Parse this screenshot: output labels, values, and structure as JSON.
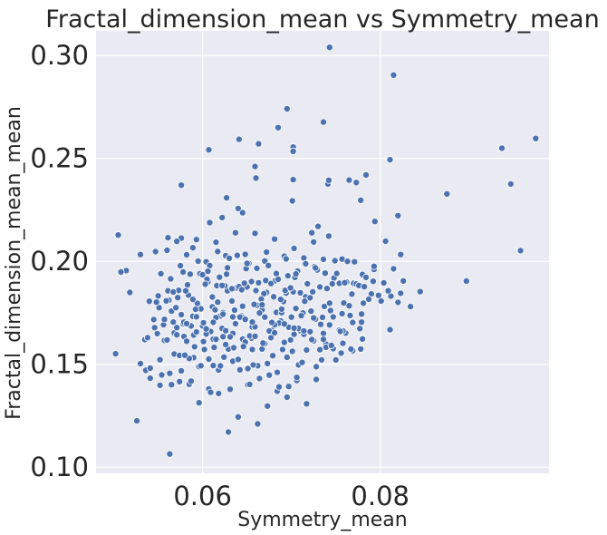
{
  "chart_data": {
    "type": "scatter",
    "title": "Fractal_dimension_mean vs Symmetry_mean",
    "xlabel": "Symmetry_mean",
    "ylabel": "Fractal_dimension_mean_mean",
    "xlim": [
      0.048,
      0.099
    ],
    "ylim": [
      0.097,
      0.312
    ],
    "xticks": [
      0.06,
      0.08
    ],
    "xtick_labels": [
      "0.06",
      "0.08"
    ],
    "yticks": [
      0.1,
      0.15,
      0.2,
      0.25,
      0.3
    ],
    "ytick_labels": [
      "0.10",
      "0.15",
      "0.20",
      "0.25",
      "0.30"
    ],
    "grid": true,
    "background": "#eaeaf2",
    "point_color": "#4c72b0",
    "x": [
      0.0743,
      0.0815,
      0.0695,
      0.0736,
      0.0702,
      0.0702,
      0.0685,
      0.0937,
      0.0975,
      0.0641,
      0.0607,
      0.0811,
      0.0663,
      0.0659,
      0.0741,
      0.0947,
      0.0958,
      0.0576,
      0.0702,
      0.0742,
      0.0765,
      0.0773,
      0.0778,
      0.0875,
      0.082,
      0.0806,
      0.0784,
      0.0794,
      0.0897,
      0.0823,
      0.0811,
      0.0761,
      0.0793,
      0.0757,
      0.078,
      0.0763,
      0.0779,
      0.0742,
      0.073,
      0.0723,
      0.0701,
      0.066,
      0.064,
      0.0645,
      0.0627,
      0.0622,
      0.0608,
      0.0576,
      0.0589,
      0.0561,
      0.0547,
      0.053,
      0.0514,
      0.0508,
      0.0505,
      0.0502,
      0.0518,
      0.0526,
      0.0536,
      0.0541,
      0.0552,
      0.0563,
      0.0574,
      0.0585,
      0.0596,
      0.0607,
      0.0618,
      0.0629,
      0.064,
      0.0651,
      0.0662,
      0.0673,
      0.0684,
      0.0695,
      0.0706,
      0.0717,
      0.0728,
      0.0739,
      0.0557,
      0.0568,
      0.0579,
      0.059,
      0.0601,
      0.0612,
      0.0623,
      0.0634,
      0.0645,
      0.0656,
      0.0667,
      0.0678,
      0.0545,
      0.0556,
      0.0567,
      0.0578,
      0.0589,
      0.06,
      0.0611,
      0.0622,
      0.0633,
      0.0644,
      0.0655,
      0.0666,
      0.0677,
      0.0688,
      0.0699,
      0.071,
      0.0721,
      0.0732,
      0.0743,
      0.0754,
      0.054,
      0.0551,
      0.0562,
      0.0573,
      0.0584,
      0.0595,
      0.0606,
      0.0617,
      0.0628,
      0.0639,
      0.065,
      0.0661,
      0.0672,
      0.0683,
      0.0694,
      0.0705,
      0.0716,
      0.0727,
      0.0535,
      0.0546,
      0.0557,
      0.0568,
      0.0579,
      0.059,
      0.0601,
      0.0612,
      0.0623,
      0.0634,
      0.0645,
      0.0656,
      0.0667,
      0.0678,
      0.0689,
      0.07,
      0.053,
      0.0541,
      0.0552,
      0.0563,
      0.0574,
      0.0585,
      0.0596,
      0.0607,
      0.0618,
      0.0629,
      0.064,
      0.0651,
      0.0662,
      0.0673,
      0.0684,
      0.0695,
      0.0706,
      0.0717,
      0.0728,
      0.0739,
      0.075,
      0.055,
      0.0561,
      0.0572,
      0.0583,
      0.0594,
      0.0605,
      0.0616,
      0.0627,
      0.0638,
      0.0649,
      0.066,
      0.0671,
      0.0682,
      0.0693,
      0.0704,
      0.0715,
      0.0726,
      0.0737,
      0.0748,
      0.0759,
      0.077,
      0.0781,
      0.0792,
      0.056,
      0.0571,
      0.0582,
      0.0593,
      0.0604,
      0.0615,
      0.0626,
      0.0637,
      0.0648,
      0.0659,
      0.067,
      0.0681,
      0.0692,
      0.0703,
      0.0714,
      0.0725,
      0.0736,
      0.0565,
      0.0576,
      0.0587,
      0.0598,
      0.0609,
      0.062,
      0.0631,
      0.0642,
      0.0653,
      0.0664,
      0.0675,
      0.0686,
      0.0697,
      0.0708,
      0.0554,
      0.0565,
      0.0576,
      0.0587,
      0.0598,
      0.0609,
      0.062,
      0.0631,
      0.0642,
      0.0653,
      0.0664,
      0.0675,
      0.0686,
      0.0697,
      0.0708,
      0.0548,
      0.0559,
      0.057,
      0.0581,
      0.0592,
      0.0603,
      0.0614,
      0.0625,
      0.0636,
      0.0647,
      0.0658,
      0.0669,
      0.068,
      0.0691,
      0.0702,
      0.0713,
      0.0724,
      0.0735,
      0.0746,
      0.0757,
      0.0768,
      0.0779,
      0.079,
      0.0801,
      0.0812,
      0.0823,
      0.0834,
      0.0845,
      0.0538,
      0.0549,
      0.056,
      0.0571,
      0.0582,
      0.0593,
      0.0604,
      0.0615,
      0.0626,
      0.0637,
      0.0648,
      0.0659,
      0.067,
      0.0681,
      0.0692,
      0.0703,
      0.0714,
      0.0725,
      0.0736,
      0.0747,
      0.0758,
      0.0769,
      0.078,
      0.0553,
      0.0564,
      0.0575,
      0.0586,
      0.0597,
      0.0608,
      0.0619,
      0.063,
      0.0641,
      0.0652,
      0.0663,
      0.0674,
      0.0685,
      0.0696,
      0.0707,
      0.0718,
      0.0729,
      0.074,
      0.0751,
      0.0762,
      0.0773,
      0.0784,
      0.058,
      0.0591,
      0.0602,
      0.0613,
      0.0624,
      0.0635,
      0.0646,
      0.0657,
      0.0668,
      0.0679,
      0.069,
      0.0701,
      0.0712,
      0.0723,
      0.0734,
      0.0745,
      0.0756,
      0.0767,
      0.0778,
      0.0567,
      0.0578,
      0.0589,
      0.06,
      0.0611,
      0.0622,
      0.0633,
      0.0644,
      0.0655,
      0.0666,
      0.0677,
      0.0688,
      0.0699,
      0.071,
      0.0721,
      0.0732,
      0.0743,
      0.0754,
      0.0765,
      0.0776,
      0.0787,
      0.0798,
      0.0809,
      0.082,
      0.0571,
      0.0582,
      0.0593,
      0.0604,
      0.0615,
      0.0626,
      0.0637,
      0.0648,
      0.0659,
      0.067,
      0.0681,
      0.0692,
      0.0703,
      0.0714,
      0.0725,
      0.0736,
      0.0747,
      0.0758,
      0.0769,
      0.078,
      0.0595,
      0.0606,
      0.0617,
      0.0628,
      0.0639,
      0.065,
      0.0661,
      0.0672,
      0.0683,
      0.0694,
      0.0705,
      0.0716,
      0.0727,
      0.0738,
      0.0749,
      0.076,
      0.0771,
      0.0782,
      0.0793,
      0.0804,
      0.0815,
      0.0826,
      0.0612,
      0.0623,
      0.0634,
      0.0645,
      0.0656,
      0.0667,
      0.0678,
      0.0689,
      0.07,
      0.0711,
      0.0722,
      0.0733,
      0.0744,
      0.0755,
      0.0766,
      0.0777
    ],
    "y": [
      0.304,
      0.2905,
      0.2741,
      0.2677,
      0.2555,
      0.2535,
      0.265,
      0.255,
      0.2597,
      0.2593,
      0.2542,
      0.2494,
      0.2571,
      0.2461,
      0.2376,
      0.2376,
      0.2052,
      0.237,
      0.2397,
      0.2394,
      0.2395,
      0.2383,
      0.2297,
      0.2328,
      0.2222,
      0.2098,
      0.242,
      0.2194,
      0.1904,
      0.2033,
      0.1668,
      0.1652,
      0.1961,
      0.2011,
      0.1936,
      0.2,
      0.1705,
      0.2123,
      0.217,
      0.2139,
      0.2294,
      0.2405,
      0.2257,
      0.2236,
      0.2309,
      0.2213,
      0.2188,
      0.2113,
      0.2066,
      0.2115,
      0.2047,
      0.2033,
      0.1955,
      0.1948,
      0.2128,
      0.1551,
      0.1849,
      0.1225,
      0.1471,
      0.1432,
      0.1398,
      0.1064,
      0.1416,
      0.1403,
      0.1313,
      0.138,
      0.1358,
      0.1171,
      0.1244,
      0.1401,
      0.121,
      0.1297,
      0.1369,
      0.134,
      0.1421,
      0.1308,
      0.1488,
      0.1598,
      0.1616,
      0.155,
      0.1635,
      0.1532,
      0.161,
      0.1494,
      0.1634,
      0.1515,
      0.1622,
      0.1572,
      0.1574,
      0.154,
      0.1717,
      0.1692,
      0.1705,
      0.1698,
      0.1733,
      0.1687,
      0.1779,
      0.1674,
      0.1807,
      0.1735,
      0.1627,
      0.1789,
      0.1629,
      0.171,
      0.1618,
      0.1663,
      0.1658,
      0.1571,
      0.1691,
      0.1666,
      0.1806,
      0.1775,
      0.1811,
      0.1859,
      0.1836,
      0.1792,
      0.1901,
      0.1802,
      0.1857,
      0.1874,
      0.1876,
      0.1787,
      0.1849,
      0.1752,
      0.1846,
      0.1771,
      0.1828,
      0.1719,
      0.162,
      0.1678,
      0.1718,
      0.1652,
      0.1705,
      0.1642,
      0.1702,
      0.1622,
      0.1751,
      0.165,
      0.1727,
      0.1681,
      0.1764,
      0.1665,
      0.1751,
      0.1733,
      0.1503,
      0.1481,
      0.1522,
      0.1456,
      0.1543,
      0.1528,
      0.1489,
      0.1525,
      0.1472,
      0.1574,
      0.1524,
      0.1479,
      0.1493,
      0.1504,
      0.1461,
      0.1534,
      0.1436,
      0.1569,
      0.1426,
      0.1583,
      0.1521,
      0.1832,
      0.1857,
      0.1824,
      0.1886,
      0.1796,
      0.1913,
      0.1882,
      0.1938,
      0.1871,
      0.1965,
      0.1858,
      0.1907,
      0.1906,
      0.1859,
      0.1922,
      0.1806,
      0.1974,
      0.1781,
      0.1919,
      0.1798,
      0.1893,
      0.1797,
      0.1903,
      0.2054,
      0.2097,
      0.2032,
      0.2106,
      0.1998,
      0.2093,
      0.2028,
      0.2139,
      0.2034,
      0.2136,
      0.2002,
      0.2108,
      0.2025,
      0.2063,
      0.2017,
      0.2094,
      0.201,
      0.1758,
      0.1741,
      0.1686,
      0.1769,
      0.1659,
      0.1735,
      0.1633,
      0.1729,
      0.1638,
      0.1749,
      0.1662,
      0.17,
      0.168,
      0.1674,
      0.1448,
      0.1401,
      0.1468,
      0.1418,
      0.1493,
      0.1364,
      0.1492,
      0.1379,
      0.1473,
      0.1402,
      0.1431,
      0.1447,
      0.139,
      0.1392,
      0.1497,
      0.1802,
      0.1808,
      0.1775,
      0.1857,
      0.1767,
      0.1889,
      0.1765,
      0.1881,
      0.1763,
      0.1894,
      0.1791,
      0.1843,
      0.1828,
      0.1805,
      0.1852,
      0.1749,
      0.1852,
      0.1728,
      0.1891,
      0.1746,
      0.1841,
      0.1744,
      0.1842,
      0.1807,
      0.1831,
      0.1845,
      0.178,
      0.1853,
      0.1629,
      0.1649,
      0.1618,
      0.1643,
      0.1612,
      0.1657,
      0.1647,
      0.1621,
      0.1596,
      0.1698,
      0.1608,
      0.1682,
      0.1601,
      0.1692,
      0.1606,
      0.1646,
      0.1646,
      0.1614,
      0.165,
      0.1576,
      0.1662,
      0.1566,
      0.1626,
      0.194,
      0.1915,
      0.1979,
      0.1938,
      0.194,
      0.198,
      0.1923,
      0.2015,
      0.1877,
      0.199,
      0.1896,
      0.198,
      0.1913,
      0.193,
      0.1953,
      0.1891,
      0.1958,
      0.1868,
      0.1941,
      0.1899,
      0.189,
      0.1922,
      0.1544,
      0.1585,
      0.1572,
      0.1582,
      0.1535,
      0.158,
      0.1586,
      0.1497,
      0.1603,
      0.1542,
      0.1572,
      0.1563,
      0.1509,
      0.162,
      0.1521,
      0.1591,
      0.1554,
      0.1574,
      0.1574,
      0.1851,
      0.1948,
      0.1815,
      0.1935,
      0.1827,
      0.1883,
      0.1867,
      0.1862,
      0.1902,
      0.1817,
      0.1892,
      0.1815,
      0.1871,
      0.1847,
      0.1823,
      0.1876,
      0.1797,
      0.1893,
      0.1784,
      0.1883,
      0.1816,
      0.1835,
      0.1857,
      0.1801,
      0.1678,
      0.1698,
      0.1731,
      0.1672,
      0.1727,
      0.1663,
      0.1697,
      0.1718,
      0.1636,
      0.1729,
      0.1653,
      0.1696,
      0.1676,
      0.1662,
      0.1725,
      0.1621,
      0.173,
      0.1602,
      0.1703,
      0.1623,
      0.2001,
      0.1952,
      0.2048,
      0.1969,
      0.2029,
      0.199,
      0.1966,
      0.2045,
      0.1941,
      0.2012,
      0.1939,
      0.1988,
      0.1968,
      0.1943,
      0.2003,
      0.1896,
      0.1998,
      0.1877,
      0.1976,
      0.1895,
      0.1964,
      0.1905,
      0.1704,
      0.1743,
      0.173,
      0.1782,
      0.1705,
      0.1789,
      0.1703,
      0.1768,
      0.1729,
      0.1736,
      0.1758,
      0.1694,
      0.1761,
      0.166,
      0.1737,
      0.1673
    ]
  }
}
